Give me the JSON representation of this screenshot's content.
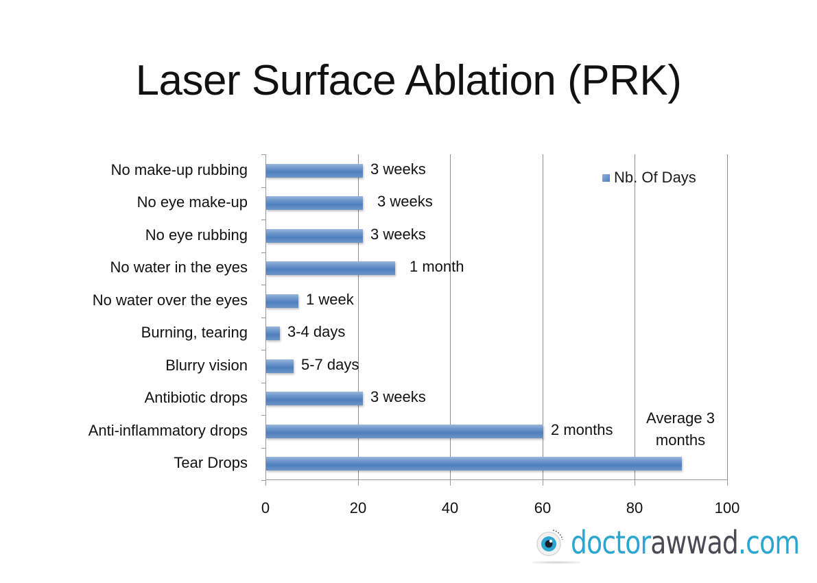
{
  "title": "Laser Surface Ablation (PRK)",
  "legend": {
    "label": "Nb. Of Days",
    "color": "#4f81bd"
  },
  "logo": {
    "part1": "doctor",
    "part2": "awwad",
    "part3": ".com",
    "color_primary": "#2aa6d1",
    "color_secondary": "#4a4a55"
  },
  "categories": [
    {
      "label": "No make-up rubbing",
      "value": 21,
      "annotation": "3 weeks"
    },
    {
      "label": "No eye make-up",
      "value": 21,
      "annotation": "3 weeks"
    },
    {
      "label": "No eye rubbing",
      "value": 21,
      "annotation": "3 weeks"
    },
    {
      "label": "No water in the eyes",
      "value": 28,
      "annotation": "1 month"
    },
    {
      "label": "No water over the eyes",
      "value": 7,
      "annotation": "1 week"
    },
    {
      "label": "Burning, tearing",
      "value": 3,
      "annotation": "3-4 days"
    },
    {
      "label": "Blurry vision",
      "value": 6,
      "annotation": "5-7 days"
    },
    {
      "label": "Antibiotic drops",
      "value": 21,
      "annotation": "3 weeks"
    },
    {
      "label": "Anti-inflammatory drops",
      "value": 60,
      "annotation": "2 months"
    },
    {
      "label": "Tear Drops",
      "value": 90,
      "annotation": "Average 3 months"
    }
  ],
  "x_ticks": [
    "0",
    "20",
    "40",
    "60",
    "80",
    "100"
  ],
  "chart_data": {
    "type": "bar",
    "orientation": "horizontal",
    "title": "Laser Surface Ablation (PRK)",
    "xlabel": "",
    "ylabel": "",
    "xlim": [
      0,
      100
    ],
    "x_ticks": [
      0,
      20,
      40,
      60,
      80,
      100
    ],
    "grid": "vertical major gridlines",
    "legend_position": "top-right inside plot",
    "categories": [
      "No make-up rubbing",
      "No eye make-up",
      "No eye rubbing",
      "No water in the eyes",
      "No water over the eyes",
      "Burning, tearing",
      "Blurry vision",
      "Antibiotic drops",
      "Anti-inflammatory drops",
      "Tear Drops"
    ],
    "series": [
      {
        "name": "Nb. Of Days",
        "values": [
          21,
          21,
          21,
          28,
          7,
          3,
          6,
          21,
          60,
          90
        ]
      }
    ],
    "annotations": [
      "3 weeks",
      "3 weeks",
      "3 weeks",
      "1 month",
      "1 week",
      "3-4 days",
      "5-7 days",
      "3 weeks",
      "2 months",
      "Average 3 months"
    ]
  }
}
